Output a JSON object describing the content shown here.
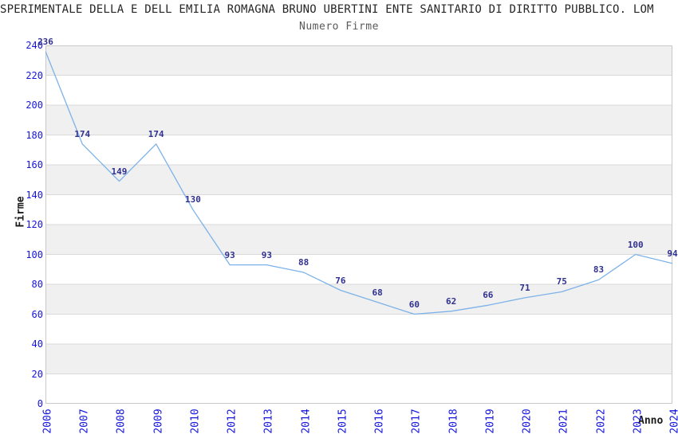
{
  "chart_data": {
    "type": "line",
    "title": "SPERIMENTALE DELLA E DELL EMILIA ROMAGNA BRUNO UBERTINI ENTE SANITARIO DI DIRITTO PUBBLICO. LOM",
    "subtitle": "Numero Firme",
    "categories": [
      "2006",
      "2007",
      "2008",
      "2009",
      "2010",
      "2012",
      "2013",
      "2014",
      "2015",
      "2016",
      "2017",
      "2018",
      "2019",
      "2020",
      "2021",
      "2022",
      "2023",
      "2024"
    ],
    "values": [
      236,
      174,
      149,
      174,
      130,
      93,
      93,
      88,
      76,
      68,
      60,
      62,
      66,
      71,
      75,
      83,
      100,
      94
    ],
    "xlabel": "Anno",
    "ylabel": "Firme",
    "ylim": [
      0,
      240
    ],
    "ytick_step": 20,
    "yticks": [
      0,
      20,
      40,
      60,
      80,
      100,
      120,
      140,
      160,
      180,
      200,
      220,
      240
    ],
    "grid": "horizontal",
    "legend": "none",
    "banded_background": true,
    "colors": {
      "line": "#7db2e8",
      "data_label": "#30308f",
      "tick_label": "#1414dc",
      "band_gray": "#f0f0f0",
      "band_white": "#ffffff",
      "gridline": "#d9d9d9",
      "border": "#c9c9c9",
      "title": "#262626",
      "subtitle": "#595959"
    }
  }
}
